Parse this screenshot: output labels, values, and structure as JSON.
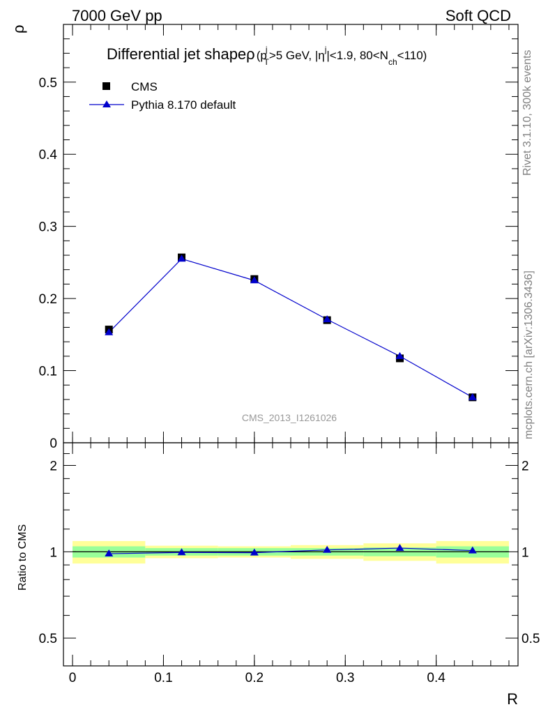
{
  "header": {
    "left": "7000 GeV pp",
    "right": "Soft QCD"
  },
  "side_text": {
    "rivet": "Rivet 3.1.10,  300k events",
    "mcplots": "mcplots.cern.ch [arXiv:1306.3436]"
  },
  "plot": {
    "title_main": "Differential jet shapeρ",
    "title_sub": "(p",
    "title_sub_T": "T",
    "title_sub_j1": "j",
    "title_sub_mid1": ">5 GeV, |η",
    "title_sub_j2": "j",
    "title_sub_mid2": "|<1.9, 80<N",
    "title_sub_ch": "ch",
    "title_sub_end": "<110)",
    "watermark": "CMS_2013_I1261026",
    "ylabel_top": "ρ",
    "ylabel_bottom": "Ratio to CMS",
    "xlabel": "R"
  },
  "legend": {
    "data_label": "CMS",
    "mc_label": "Pythia 8.170 default"
  },
  "colors": {
    "data": "#000000",
    "mc": "#0000cc",
    "band_inner": "#99ff99",
    "band_outer": "#ffff99"
  },
  "chart_data": {
    "type": "scatter",
    "x_edges": [
      0.0,
      0.08,
      0.16,
      0.24,
      0.32,
      0.4,
      0.48
    ],
    "x": [
      0.04,
      0.12,
      0.2,
      0.28,
      0.36,
      0.44
    ],
    "series": [
      {
        "name": "CMS",
        "values": [
          0.157,
          0.257,
          0.227,
          0.17,
          0.117,
          0.063
        ]
      },
      {
        "name": "Pythia 8.170 default",
        "values": [
          0.153,
          0.255,
          0.225,
          0.171,
          0.12,
          0.063
        ]
      }
    ],
    "ratio": [
      0.985,
      0.995,
      0.993,
      1.015,
      1.03,
      1.01
    ],
    "ratio_band_inner": [
      [
        0.955,
        1.045
      ],
      [
        0.97,
        1.03
      ],
      [
        0.97,
        1.03
      ],
      [
        0.97,
        1.03
      ],
      [
        0.965,
        1.035
      ],
      [
        0.955,
        1.045
      ]
    ],
    "ratio_band_outer": [
      [
        0.91,
        1.09
      ],
      [
        0.95,
        1.05
      ],
      [
        0.955,
        1.045
      ],
      [
        0.945,
        1.055
      ],
      [
        0.93,
        1.07
      ],
      [
        0.91,
        1.09
      ]
    ],
    "xlim": [
      -0.01,
      0.49
    ],
    "ylim": [
      0,
      0.58
    ],
    "ratio_ylim": [
      0.4,
      2.4
    ],
    "ratio_log": true,
    "xticks": [
      "0",
      "0.1",
      "0.2",
      "0.3",
      "0.4"
    ],
    "yticks": [
      "0.1",
      "0.2",
      "0.3",
      "0.4",
      "0.5"
    ],
    "yticks_extra": [
      "0"
    ],
    "ratio_yticks": [
      "0.5",
      "1",
      "2"
    ]
  }
}
